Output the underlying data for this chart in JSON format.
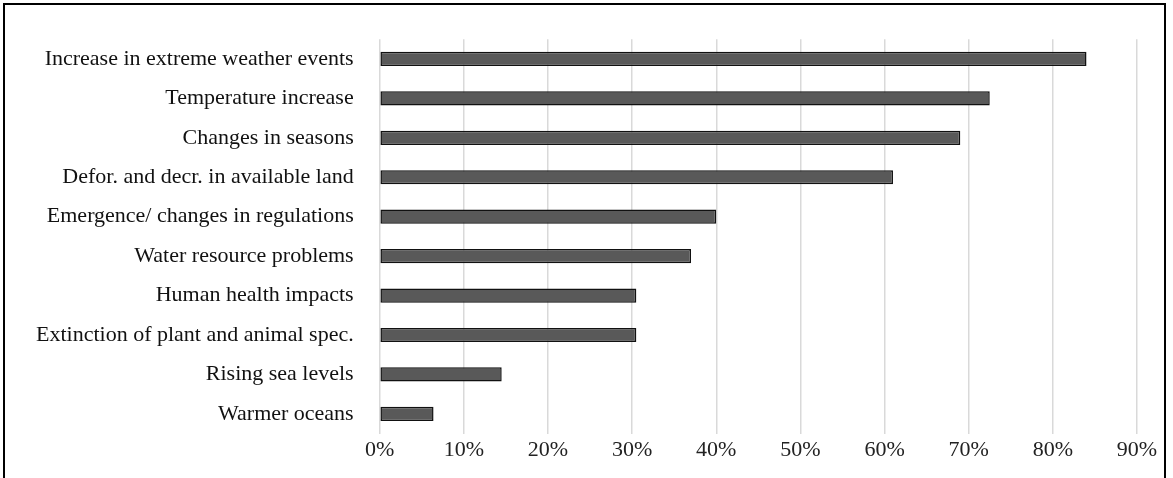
{
  "chart_data": {
    "type": "bar",
    "orientation": "horizontal",
    "categories": [
      "Increase in extreme weather events",
      "Temperature increase",
      "Changes in seasons",
      "Defor. and decr. in available land",
      "Emergence/ changes in regulations",
      "Water resource problems",
      "Human health impacts",
      "Extinction of plant and animal spec.",
      "Rising sea levels",
      "Warmer oceans"
    ],
    "values": [
      84,
      72.5,
      69,
      61,
      40,
      37,
      30.5,
      30.5,
      14.5,
      6.4
    ],
    "color": "#595959",
    "xlim": [
      0,
      90
    ],
    "xticks": [
      {
        "value": 0,
        "label": "0%"
      },
      {
        "value": 10,
        "label": "10%"
      },
      {
        "value": 20,
        "label": "20%"
      },
      {
        "value": 30,
        "label": "30%"
      },
      {
        "value": 40,
        "label": "40%"
      },
      {
        "value": 50,
        "label": "50%"
      },
      {
        "value": 60,
        "label": "60%"
      },
      {
        "value": 70,
        "label": "70%"
      },
      {
        "value": 80,
        "label": "80%"
      },
      {
        "value": 90,
        "label": "90%"
      }
    ],
    "grid": "x",
    "legend": false
  }
}
